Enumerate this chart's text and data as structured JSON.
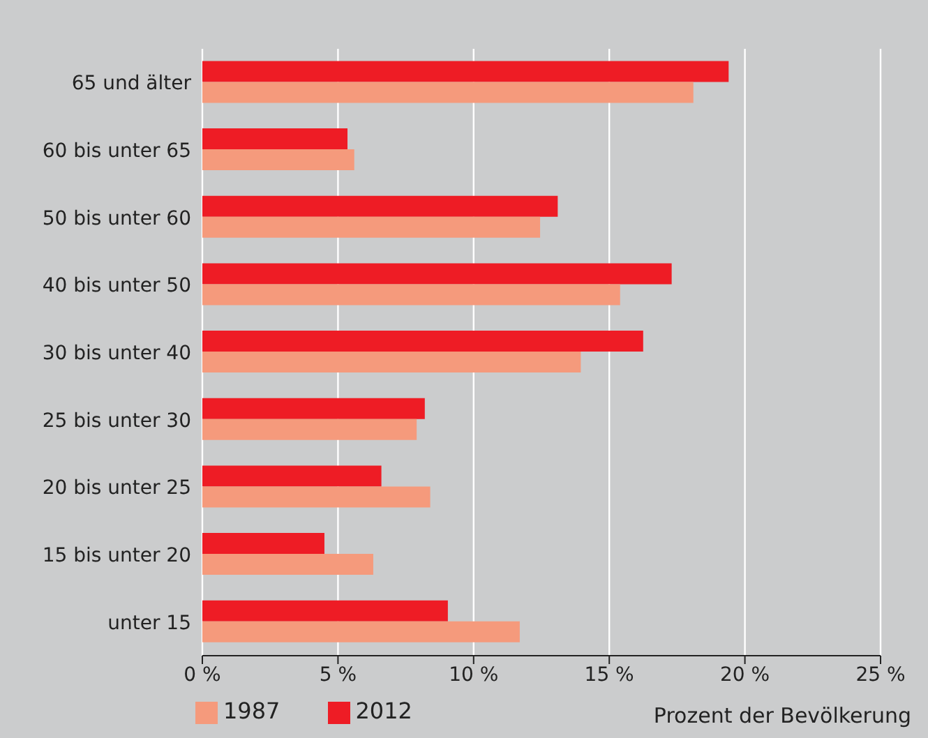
{
  "chart_data": {
    "type": "bar",
    "orientation": "horizontal",
    "xlabel": "Prozent der Bevölkerung",
    "categories": [
      "65 und älter",
      "60 bis unter 65",
      "50 bis unter 60",
      "40 bis unter 50",
      "30 bis unter 40",
      "25 bis unter 30",
      "20 bis unter 25",
      "15 bis unter 20",
      "unter 15"
    ],
    "series": [
      {
        "name": "2012",
        "color": "#ee1c25",
        "values": [
          19.4,
          5.35,
          13.1,
          17.3,
          16.25,
          8.2,
          6.6,
          4.5,
          9.05
        ]
      },
      {
        "name": "1987",
        "color": "#f59a7c",
        "values": [
          18.1,
          5.6,
          12.45,
          15.4,
          13.95,
          7.9,
          8.4,
          6.3,
          11.7
        ]
      }
    ],
    "xlim": [
      0,
      25
    ],
    "xticks": [
      {
        "value": 0,
        "label": "0 %"
      },
      {
        "value": 5,
        "label": "5 %"
      },
      {
        "value": 10,
        "label": "10 %"
      },
      {
        "value": 15,
        "label": "15 %"
      },
      {
        "value": 20,
        "label": "20 %"
      },
      {
        "value": 25,
        "label": "25 %"
      }
    ],
    "grid": "x",
    "legend": "bottom left"
  }
}
